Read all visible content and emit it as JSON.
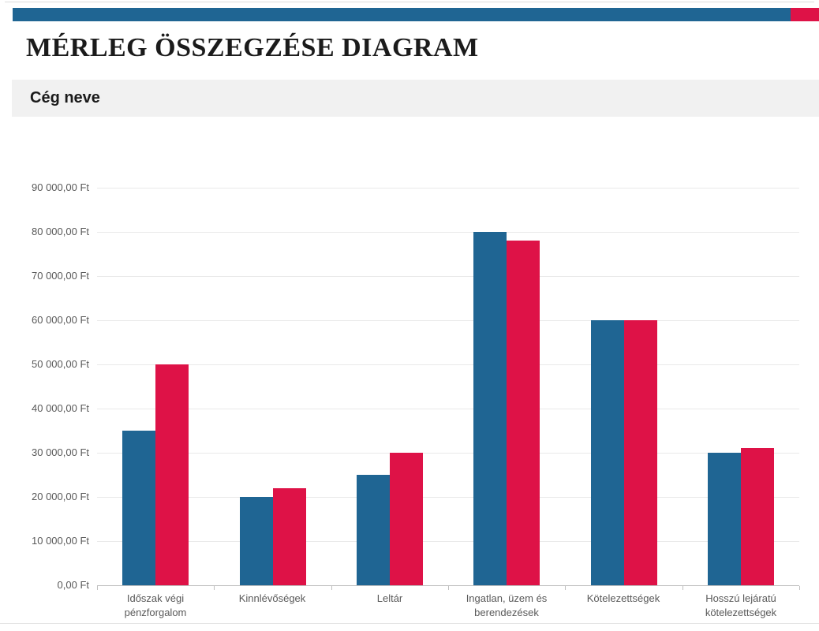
{
  "page": {
    "title": "MÉRLEG ÖSSZEGZÉSE DIAGRAM",
    "company_label": "Cég neve"
  },
  "colors": {
    "accent_blue": "#1F6593",
    "accent_red": "#DE1247",
    "band_background": "#F1F1F1",
    "axis_line": "#BFBFBF",
    "gridline": "#E9E9E9",
    "axis_label": "#595959",
    "title_text": "#1B1B1B"
  },
  "chart_data": {
    "type": "bar",
    "title": "",
    "categories": [
      "Időszak végi pénzforgalom",
      "Kinnlévőségek",
      "Leltár",
      "Ingatlan, üzem és berendezések",
      "Kötelezettségek",
      "Hosszú lejáratú kötelezettségek"
    ],
    "series": [
      {
        "color": "#1F6593",
        "values": [
          35000,
          20000,
          25000,
          80000,
          60000,
          30000
        ]
      },
      {
        "color": "#DE1247",
        "values": [
          50000,
          22000,
          30000,
          78000,
          60000,
          31000
        ]
      }
    ],
    "ylim": [
      0,
      90000
    ],
    "ytick_step": 10000,
    "ytick_labels": [
      "0,00 Ft",
      "10 000,00 Ft",
      "20 000,00 Ft",
      "30 000,00 Ft",
      "40 000,00 Ft",
      "50 000,00 Ft",
      "60 000,00 Ft",
      "70 000,00 Ft",
      "80 000,00 Ft",
      "90 000,00 Ft"
    ],
    "grid": true,
    "legend": "none"
  }
}
